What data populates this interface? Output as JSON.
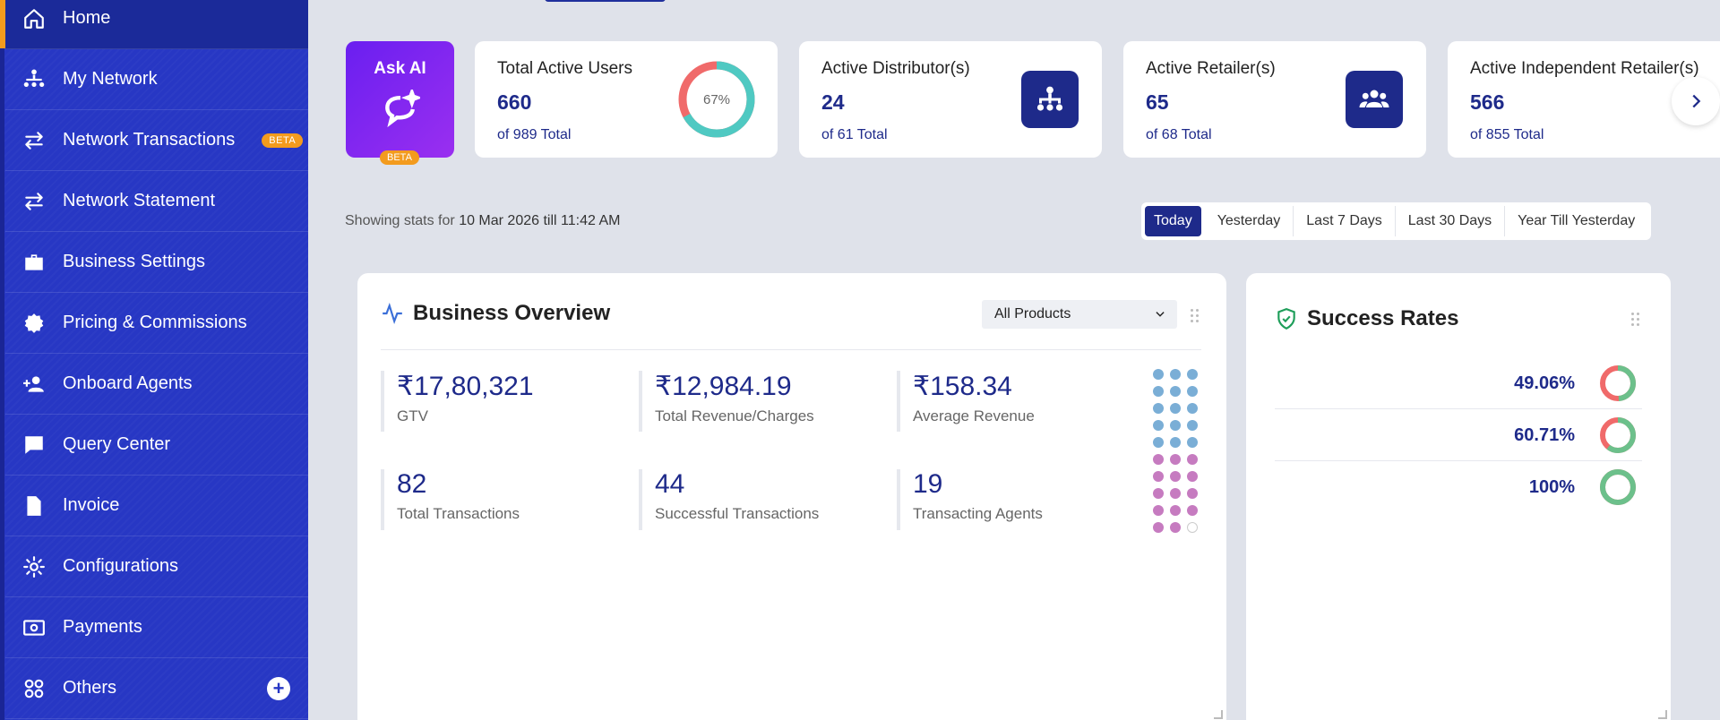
{
  "sidebar": {
    "items": [
      {
        "label": "Home",
        "icon": "home-icon"
      },
      {
        "label": "My Network",
        "icon": "network-icon"
      },
      {
        "label": "Network Transactions",
        "icon": "transfer-icon",
        "badge": "BETA"
      },
      {
        "label": "Network Statement",
        "icon": "transfer-icon"
      },
      {
        "label": "Business Settings",
        "icon": "briefcase-icon"
      },
      {
        "label": "Pricing & Commissions",
        "icon": "discount-icon"
      },
      {
        "label": "Onboard Agents",
        "icon": "add-user-icon"
      },
      {
        "label": "Query Center",
        "icon": "question-icon"
      },
      {
        "label": "Invoice",
        "icon": "document-icon"
      },
      {
        "label": "Configurations",
        "icon": "gear-icon"
      },
      {
        "label": "Payments",
        "icon": "money-icon"
      },
      {
        "label": "Others",
        "icon": "grid-icon"
      }
    ]
  },
  "ask_ai": {
    "label": "Ask AI",
    "badge": "BETA"
  },
  "stats": {
    "users": {
      "label": "Total Active Users",
      "value": "660",
      "total": "of 989 Total",
      "percent": "67%"
    },
    "distributors": {
      "label": "Active Distributor(s)",
      "value": "24",
      "total": "of 61 Total"
    },
    "retailers": {
      "label": "Active Retailer(s)",
      "value": "65",
      "total": "of 68 Total"
    },
    "independent": {
      "label": "Active Independent Retailer(s)",
      "value": "566",
      "total": "of 855 Total"
    }
  },
  "showing": {
    "prefix": "Showing stats for",
    "date": "10 Mar 2026 till 11:42 AM"
  },
  "date_range": {
    "options": [
      "Today",
      "Yesterday",
      "Last 7 Days",
      "Last 30 Days",
      "Year Till Yesterday"
    ],
    "selected": "Today"
  },
  "business_overview": {
    "title": "Business Overview",
    "product_filter": "All Products",
    "metrics": [
      {
        "value": "₹17,80,321",
        "label": "GTV"
      },
      {
        "value": "₹12,984.19",
        "label": "Total Revenue/Charges"
      },
      {
        "value": "₹158.34",
        "label": "Average Revenue"
      },
      {
        "value": "82",
        "label": "Total Transactions"
      },
      {
        "value": "44",
        "label": "Successful Transactions"
      },
      {
        "value": "19",
        "label": "Transacting Agents"
      }
    ]
  },
  "success_rates": {
    "title": "Success Rates",
    "rates": [
      {
        "value": "49.06%",
        "fraction": 0.4906
      },
      {
        "value": "60.71%",
        "fraction": 0.6071
      },
      {
        "value": "100%",
        "fraction": 1.0
      }
    ]
  },
  "colors": {
    "primary": "#1e2a8a",
    "sidebar": "#2737c4",
    "accent": "#f39b1e",
    "success": "#6cc08b",
    "fail": "#f06a6a",
    "teal": "#4fc9c2"
  }
}
